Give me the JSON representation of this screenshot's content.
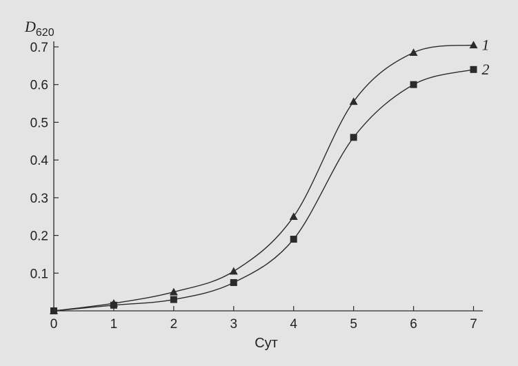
{
  "chart_data": {
    "type": "line",
    "ylabel_main": "D",
    "ylabel_sub": "620",
    "xlabel": "Сут",
    "xlim": [
      0,
      7
    ],
    "ylim": [
      0,
      0.7
    ],
    "x_ticks": [
      "0",
      "1",
      "2",
      "3",
      "4",
      "5",
      "6",
      "7"
    ],
    "y_ticks": [
      "0.1",
      "0.2",
      "0.3",
      "0.4",
      "0.5",
      "0.6",
      "0.7"
    ],
    "grid": false,
    "series": [
      {
        "name": "1",
        "marker": "triangle",
        "x": [
          0,
          1,
          2,
          3,
          4,
          5,
          6,
          7
        ],
        "values": [
          0.0,
          0.02,
          0.05,
          0.105,
          0.25,
          0.555,
          0.685,
          0.705
        ]
      },
      {
        "name": "2",
        "marker": "square",
        "x": [
          0,
          1,
          2,
          3,
          4,
          5,
          6,
          7
        ],
        "values": [
          0.0,
          0.015,
          0.03,
          0.075,
          0.19,
          0.46,
          0.6,
          0.64
        ]
      }
    ]
  }
}
